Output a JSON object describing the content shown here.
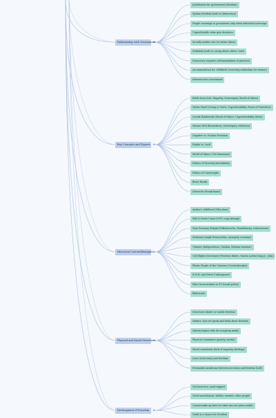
{
  "mindmap": {
    "colors": {
      "branch_node": "#bccfee",
      "leaf_node": "#a8ddd0",
      "link": "#a9bcdf",
      "background": "#f5f9fe"
    },
    "branches": [
      {
        "label": "Relationship with Government",
        "children": [
          "Justification for government (freedom)",
          "System freedom leads to (democracy)",
          "People sovereign in government only when individual sovereign",
          "Unpredictable value gets deviation",
          "Socially mobile vote for better future",
          "Definitely leads to caring about others' votes",
          "Democracy requires self-examination of practices",
          "Accommodation for childbirth (reserving unfreedom for women)",
          "Infrastructure investment"
        ]
      },
      {
        "label": "Key Concepts and Figures",
        "children": [
          "Edith Stein (Life, Empathy, Sovereignty, World of Values)",
          "Václav Havel (Living in Truth, Unpredictability, Power of Powerless)",
          "Leszek Kołakowski (World of Values, Unpredictability, Rules)",
          "Simone Weil (Rootedness, Sovereignty, Attention)",
          "Negative vs. Positive Freedom",
          "Kripke vs. Lock",
          "World of Values (7th Dimension)",
          "Politics of Diversity/Inevitability",
          "Politics of Catastrophe",
          "Brute Hunks",
          "Nietzsche (Frank Rand)"
        ]
      },
      {
        "label": "Historical Context/Examples",
        "children": [
          "Author's childhood (Ohio farm)",
          "Fall of Soviet Union (1991 coup attempt)",
          "Nazi Germany (Kripke/Volksdeutsche, Paradekarpa, Lebensraum)",
          "Stalinism (single fiction/value, monopoly economy)",
          "Ukraine (Independence, Maidan, Russian invasion)",
          "Civil Rights Movement (Freedom Riders, Martin Luther King Jr., John Lewis)",
          "Plastic People of the Universe (Czechoslovakia)",
          "K.D.M. and Velvet Underground",
          "Mass Incarceration in US (racial policy)",
          "Belarusian"
        ]
      },
      {
        "label": "Physical and Moral Structures",
        "children": [
          "Structures hinder or enable freedom",
          "Makers: how we speak and think about freedom",
          "Liberty begins with de-occupying minds",
          "Physical constraints (gravity, inertia)",
          "Moral constraints (lack of empathy, ideology)",
          "Laws of necessity and freedom",
          "Permeable membrane between necessity and freedom (Left)"
        ]
      },
      {
        "label": "Development of Freedom",
        "children": [
          "Not born free; need support",
          "Need nourishment, shelter, warmth, other people",
          "Cannot make up later for what was not given earlier",
          "Youth is a chance for freedom"
        ]
      }
    ]
  }
}
